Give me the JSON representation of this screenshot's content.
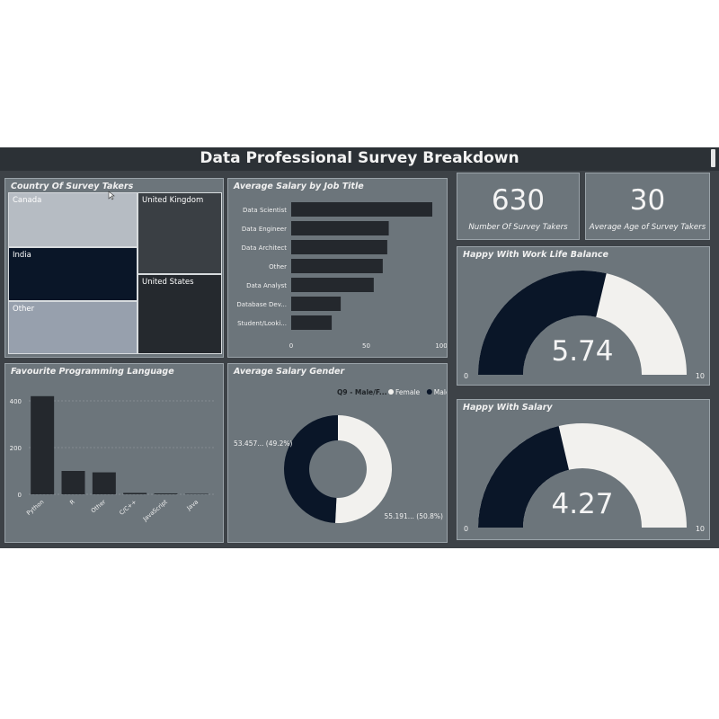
{
  "title": "Data Professional Survey Breakdown",
  "colors": {
    "navy": "#0a1628",
    "light": "#f2f1ee",
    "bar": "#24282d",
    "panel": "#6c757b",
    "background": "#3d4247"
  },
  "treemap": {
    "title": "Country Of Survey Takers",
    "tiles": [
      {
        "label": "Canada",
        "color": "#b6bcc3"
      },
      {
        "label": "India",
        "color": "#0a1628"
      },
      {
        "label": "Other",
        "color": "#97a0ad"
      },
      {
        "label": "United Kingdom",
        "color": "#3a3f44"
      },
      {
        "label": "United States",
        "color": "#25292e"
      }
    ]
  },
  "salary_by_title": {
    "title": "Average Salary by Job Title"
  },
  "languages": {
    "title": "Favourite Programming Language"
  },
  "gender": {
    "title": "Average Salary Gender",
    "legend_title": "Q9 - Male/F...",
    "legend": [
      {
        "label": "Female",
        "color": "#f2f1ee"
      },
      {
        "label": "Male",
        "color": "#0a1628"
      }
    ],
    "labels": {
      "male": "53.457... (49.2%)",
      "female": "55.191... (50.8%)"
    }
  },
  "kpis": {
    "survey_takers": {
      "value": "630",
      "label": "Number Of Survey Takers"
    },
    "avg_age": {
      "value": "30",
      "label": "Average Age of Survey Takers"
    }
  },
  "gauges": {
    "work_life": {
      "title": "Happy With Work Life Balance",
      "value": 5.74,
      "display": "5.74",
      "min": 0,
      "max": 10,
      "min_label": "0",
      "max_label": "10"
    },
    "salary": {
      "title": "Happy With Salary",
      "value": 4.27,
      "display": "4.27",
      "min": 0,
      "max": 10,
      "min_label": "0",
      "max_label": "10"
    }
  },
  "chart_data": [
    {
      "type": "bar",
      "orientation": "horizontal",
      "title": "Average Salary by Job Title",
      "categories": [
        "Data Scientist",
        "Data Engineer",
        "Data Architect",
        "Other",
        "Data Analyst",
        "Database Dev...",
        "Student/Looki..."
      ],
      "values": [
        94,
        65,
        64,
        61,
        55,
        33,
        27
      ],
      "xlim": [
        0,
        100
      ],
      "xticks": [
        "0",
        "50",
        "100"
      ]
    },
    {
      "type": "bar",
      "title": "Favourite Programming Language",
      "categories": [
        "Python",
        "R",
        "Other",
        "C/C++",
        "JavaScript",
        "Java"
      ],
      "values": [
        420,
        100,
        94,
        6,
        4,
        2
      ],
      "ylim": [
        0,
        450
      ],
      "yticks": [
        "0",
        "200",
        "400"
      ],
      "grid": true
    },
    {
      "type": "pie",
      "title": "Average Salary Gender",
      "donut": true,
      "slices": [
        {
          "name": "Female",
          "value": 50.8,
          "label": "55.191... (50.8%)"
        },
        {
          "name": "Male",
          "value": 49.2,
          "label": "53.457... (49.2%)"
        }
      ]
    }
  ]
}
